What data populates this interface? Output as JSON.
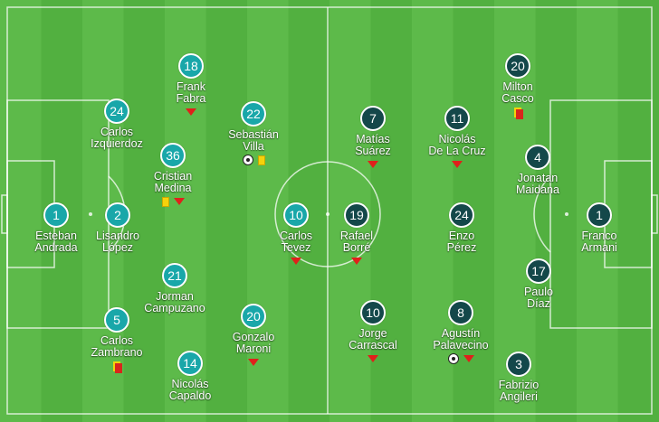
{
  "colors": {
    "home": "#19a7a9",
    "away": "#14484a",
    "pitch_light": "#5dba4a",
    "pitch_dark": "#52b040",
    "line": "#ffffff"
  },
  "home_team": {
    "players": [
      {
        "number": "1",
        "first": "Esteban",
        "last": "Andrada",
        "events": []
      },
      {
        "number": "2",
        "first": "Lisandro",
        "last": "López",
        "events": []
      },
      {
        "number": "24",
        "first": "Carlos",
        "last": "Izquierdoz",
        "events": []
      },
      {
        "number": "5",
        "first": "Carlos",
        "last": "Zambrano",
        "events": [
          "red-card-icon"
        ]
      },
      {
        "number": "18",
        "first": "Frank",
        "last": "Fabra",
        "events": [
          "substitution-icon"
        ]
      },
      {
        "number": "36",
        "first": "Cristian",
        "last": "Medina",
        "events": [
          "yellow-card-icon",
          "substitution-icon"
        ]
      },
      {
        "number": "21",
        "first": "Jorman",
        "last": "Campuzano",
        "events": []
      },
      {
        "number": "14",
        "first": "Nicolás",
        "last": "Capaldo",
        "events": []
      },
      {
        "number": "22",
        "first": "Sebastián",
        "last": "Villa",
        "events": [
          "goal-icon",
          "yellow-card-icon"
        ]
      },
      {
        "number": "20",
        "first": "Gonzalo",
        "last": "Maroni",
        "events": [
          "substitution-icon"
        ]
      },
      {
        "number": "10",
        "first": "Carlos",
        "last": "Tevez",
        "events": [
          "substitution-icon"
        ]
      }
    ]
  },
  "away_team": {
    "players": [
      {
        "number": "1",
        "first": "Franco",
        "last": "Armani",
        "events": []
      },
      {
        "number": "20",
        "first": "Milton",
        "last": "Casco",
        "events": [
          "red-card-icon"
        ]
      },
      {
        "number": "4",
        "first": "Jonatan",
        "last": "Maidana",
        "events": []
      },
      {
        "number": "17",
        "first": "Paulo",
        "last": "Díaz",
        "events": []
      },
      {
        "number": "3",
        "first": "Fabrizio",
        "last": "Angileri",
        "events": []
      },
      {
        "number": "11",
        "first": "Nicolás",
        "last": "De La Cruz",
        "events": [
          "substitution-icon"
        ]
      },
      {
        "number": "24",
        "first": "Enzo",
        "last": "Pérez",
        "events": []
      },
      {
        "number": "8",
        "first": "Agustín",
        "last": "Palavecino",
        "events": [
          "goal-icon",
          "substitution-icon"
        ]
      },
      {
        "number": "7",
        "first": "Matías",
        "last": "Suárez",
        "events": [
          "substitution-icon"
        ]
      },
      {
        "number": "19",
        "first": "Rafael",
        "last": "Borré",
        "events": [
          "substitution-icon"
        ]
      },
      {
        "number": "10",
        "first": "Jorge",
        "last": "Carrascal",
        "events": [
          "substitution-icon"
        ]
      }
    ]
  }
}
